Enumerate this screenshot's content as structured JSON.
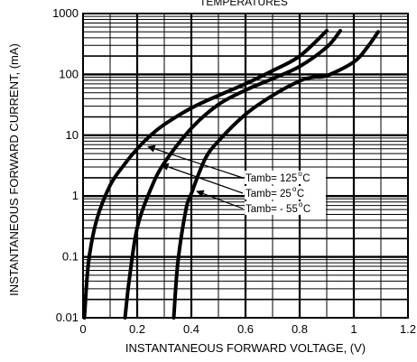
{
  "chart_data": {
    "type": "line",
    "title": "TEMPERATURES",
    "xlabel": "INSTANTANEOUS FORWARD VOLTAGE, (V)",
    "ylabel": "INSTANTANEOUS FORWARD CURRENT, (mA)",
    "xlim": [
      0,
      1.2
    ],
    "ylim": [
      0.01,
      1000
    ],
    "yscale": "log",
    "grid": true,
    "x_ticks": [
      "0",
      "0.2",
      "0.4",
      "0.6",
      "0.8",
      "1",
      "1.2"
    ],
    "y_ticks": [
      "0.01",
      "0.1",
      "1",
      "10",
      "100",
      "1000"
    ],
    "series": [
      {
        "name": "Tamb= 125°C",
        "x": [
          0.005,
          0.02,
          0.05,
          0.1,
          0.15,
          0.2,
          0.25,
          0.3,
          0.4,
          0.5,
          0.6,
          0.7,
          0.8,
          0.9
        ],
        "y": [
          0.01,
          0.08,
          0.4,
          1.5,
          3.2,
          6,
          10,
          15,
          28,
          45,
          70,
          115,
          200,
          520
        ]
      },
      {
        "name": "Tamb=  25°C",
        "x": [
          0.155,
          0.17,
          0.2,
          0.25,
          0.3,
          0.4,
          0.5,
          0.6,
          0.7,
          0.8,
          0.9,
          0.95
        ],
        "y": [
          0.01,
          0.04,
          0.3,
          1.3,
          3.5,
          13,
          32,
          55,
          85,
          135,
          280,
          520
        ]
      },
      {
        "name": "Tamb= - 55°C",
        "x": [
          0.335,
          0.35,
          0.38,
          0.4,
          0.45,
          0.5,
          0.6,
          0.7,
          0.8,
          0.85,
          0.9,
          1.0,
          1.05,
          1.09
        ],
        "y": [
          0.01,
          0.08,
          0.6,
          1.1,
          4,
          8,
          22,
          45,
          78,
          90,
          95,
          160,
          280,
          500
        ]
      }
    ],
    "annotations": [
      {
        "text": "Tamb= 125",
        "sup": "o",
        "unit": "C",
        "target_x": 0.24,
        "target_y": 6.5
      },
      {
        "text": "Tamb=  25",
        "sup": "o",
        "unit": "C",
        "target_x": 0.29,
        "target_y": 3.3
      },
      {
        "text": "Tamb= - 55",
        "sup": "o",
        "unit": "C",
        "target_x": 0.42,
        "target_y": 1.2
      }
    ]
  }
}
